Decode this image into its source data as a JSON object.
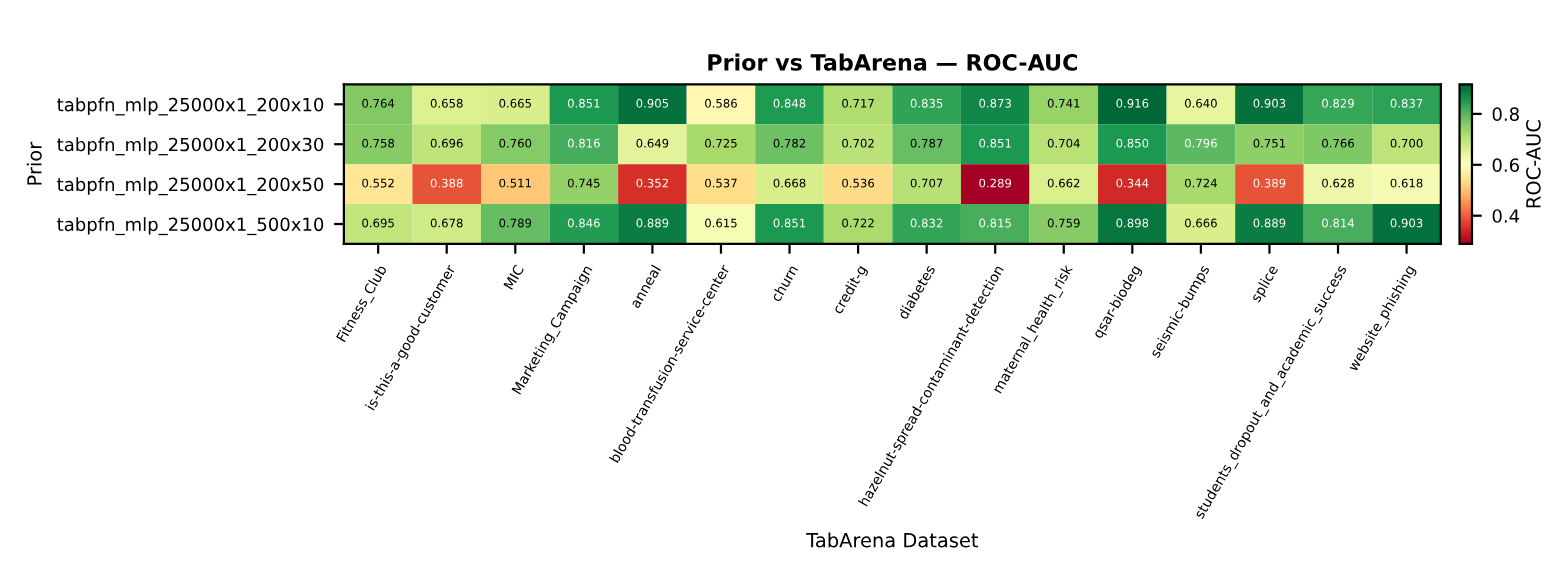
{
  "chart_data": {
    "type": "heatmap",
    "title": "Prior vs TabArena — ROC-AUC",
    "xlabel": "TabArena Dataset",
    "ylabel": "Prior",
    "clabel": "ROC-AUC",
    "categories": [
      "Fitness_Club",
      "is-this-a-good-customer",
      "MIC",
      "Marketing_Campaign",
      "anneal",
      "blood-transfusion-service-center",
      "churn",
      "credit-g",
      "diabetes",
      "hazelnut-spread-contaminant-detection",
      "maternal_health_risk",
      "qsar-biodeg",
      "seismic-bumps",
      "splice",
      "students_dropout_and_academic_success",
      "website_phishing"
    ],
    "y_categories": [
      "tabpfn_mlp_25000x1_200x10",
      "tabpfn_mlp_25000x1_200x30",
      "tabpfn_mlp_25000x1_200x50",
      "tabpfn_mlp_25000x1_500x10"
    ],
    "cells": [
      [
        0.764,
        0.658,
        0.665,
        0.851,
        0.905,
        0.586,
        0.848,
        0.717,
        0.835,
        0.873,
        0.741,
        0.916,
        0.64,
        0.903,
        0.829,
        0.837
      ],
      [
        0.758,
        0.696,
        0.76,
        0.816,
        0.649,
        0.725,
        0.782,
        0.702,
        0.787,
        0.851,
        0.704,
        0.85,
        0.796,
        0.751,
        0.766,
        0.7
      ],
      [
        0.552,
        0.388,
        0.511,
        0.745,
        0.352,
        0.537,
        0.668,
        0.536,
        0.707,
        0.289,
        0.662,
        0.344,
        0.724,
        0.389,
        0.628,
        0.618
      ],
      [
        0.695,
        0.678,
        0.789,
        0.846,
        0.889,
        0.615,
        0.851,
        0.722,
        0.832,
        0.815,
        0.759,
        0.898,
        0.666,
        0.889,
        0.814,
        0.903
      ]
    ],
    "cell_labels": [
      [
        "0.764",
        "0.658",
        "0.665",
        "0.851",
        "0.905",
        "0.586",
        "0.848",
        "0.717",
        "0.835",
        "0.873",
        "0.741",
        "0.916",
        "0.640",
        "0.903",
        "0.829",
        "0.837"
      ],
      [
        "0.758",
        "0.696",
        "0.760",
        "0.816",
        "0.649",
        "0.725",
        "0.782",
        "0.702",
        "0.787",
        "0.851",
        "0.704",
        "0.850",
        "0.796",
        "0.751",
        "0.766",
        "0.700"
      ],
      [
        "0.552",
        "0.388",
        "0.511",
        "0.745",
        "0.352",
        "0.537",
        "0.668",
        "0.536",
        "0.707",
        "0.289",
        "0.662",
        "0.344",
        "0.724",
        "0.389",
        "0.628",
        "0.618"
      ],
      [
        "0.695",
        "0.678",
        "0.789",
        "0.846",
        "0.889",
        "0.615",
        "0.851",
        "0.722",
        "0.832",
        "0.815",
        "0.759",
        "0.898",
        "0.666",
        "0.889",
        "0.814",
        "0.903"
      ]
    ],
    "clim": [
      0.289,
      0.916
    ],
    "cticks": [
      0.4,
      0.6,
      0.8
    ]
  }
}
